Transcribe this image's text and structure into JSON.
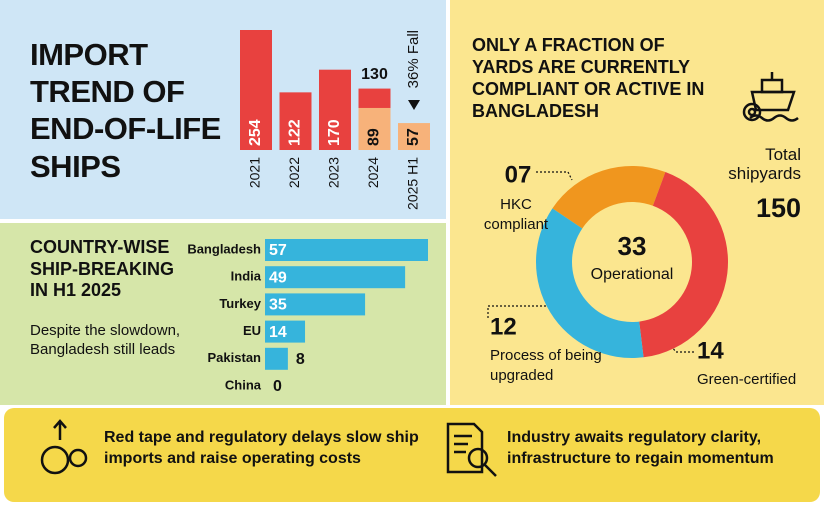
{
  "chart_data": [
    {
      "type": "bar",
      "title": "IMPORT TREND OF END-OF-LIFE SHIPS",
      "categories": [
        "2021",
        "2022",
        "2023",
        "2024",
        "2025 H1"
      ],
      "series": [
        {
          "color": "#e8413f",
          "values": [
            254,
            122,
            170,
            130,
            null
          ]
        },
        {
          "color": "#f7b27a",
          "values": [
            null,
            null,
            null,
            89,
            57
          ]
        }
      ],
      "annotation": "36% Fall"
    },
    {
      "type": "hbar",
      "title": "COUNTRY-WISE SHIP-BREAKING IN H1 2025",
      "subtitle": "Despite the slowdown, Bangladesh still leads",
      "categories": [
        "Bangladesh",
        "India",
        "Turkey",
        "EU",
        "Pakistan",
        "China"
      ],
      "values": [
        57,
        49,
        35,
        14,
        8,
        0
      ],
      "color": "#36b4dc"
    },
    {
      "type": "donut",
      "title": "ONLY A FRACTION OF YARDS ARE CURRENTLY COMPLIANT OR ACTIVE IN BANGLADESH",
      "categories": [
        "HKC compliant",
        "Green-certified",
        "Process of being upgraded"
      ],
      "values": [
        7,
        14,
        12
      ],
      "value_labels": [
        "07",
        "14",
        "12"
      ],
      "colors": [
        "#f0961e",
        "#e8413f",
        "#36b4dc"
      ],
      "center_value": 33,
      "center_label": "Operational",
      "total_label": "Total shipyards",
      "total": 150
    }
  ],
  "notes": [
    "Red tape and regulatory delays slow ship imports and raise operating costs",
    "Industry awaits regulatory clarity, infrastructure to regain momentum"
  ]
}
